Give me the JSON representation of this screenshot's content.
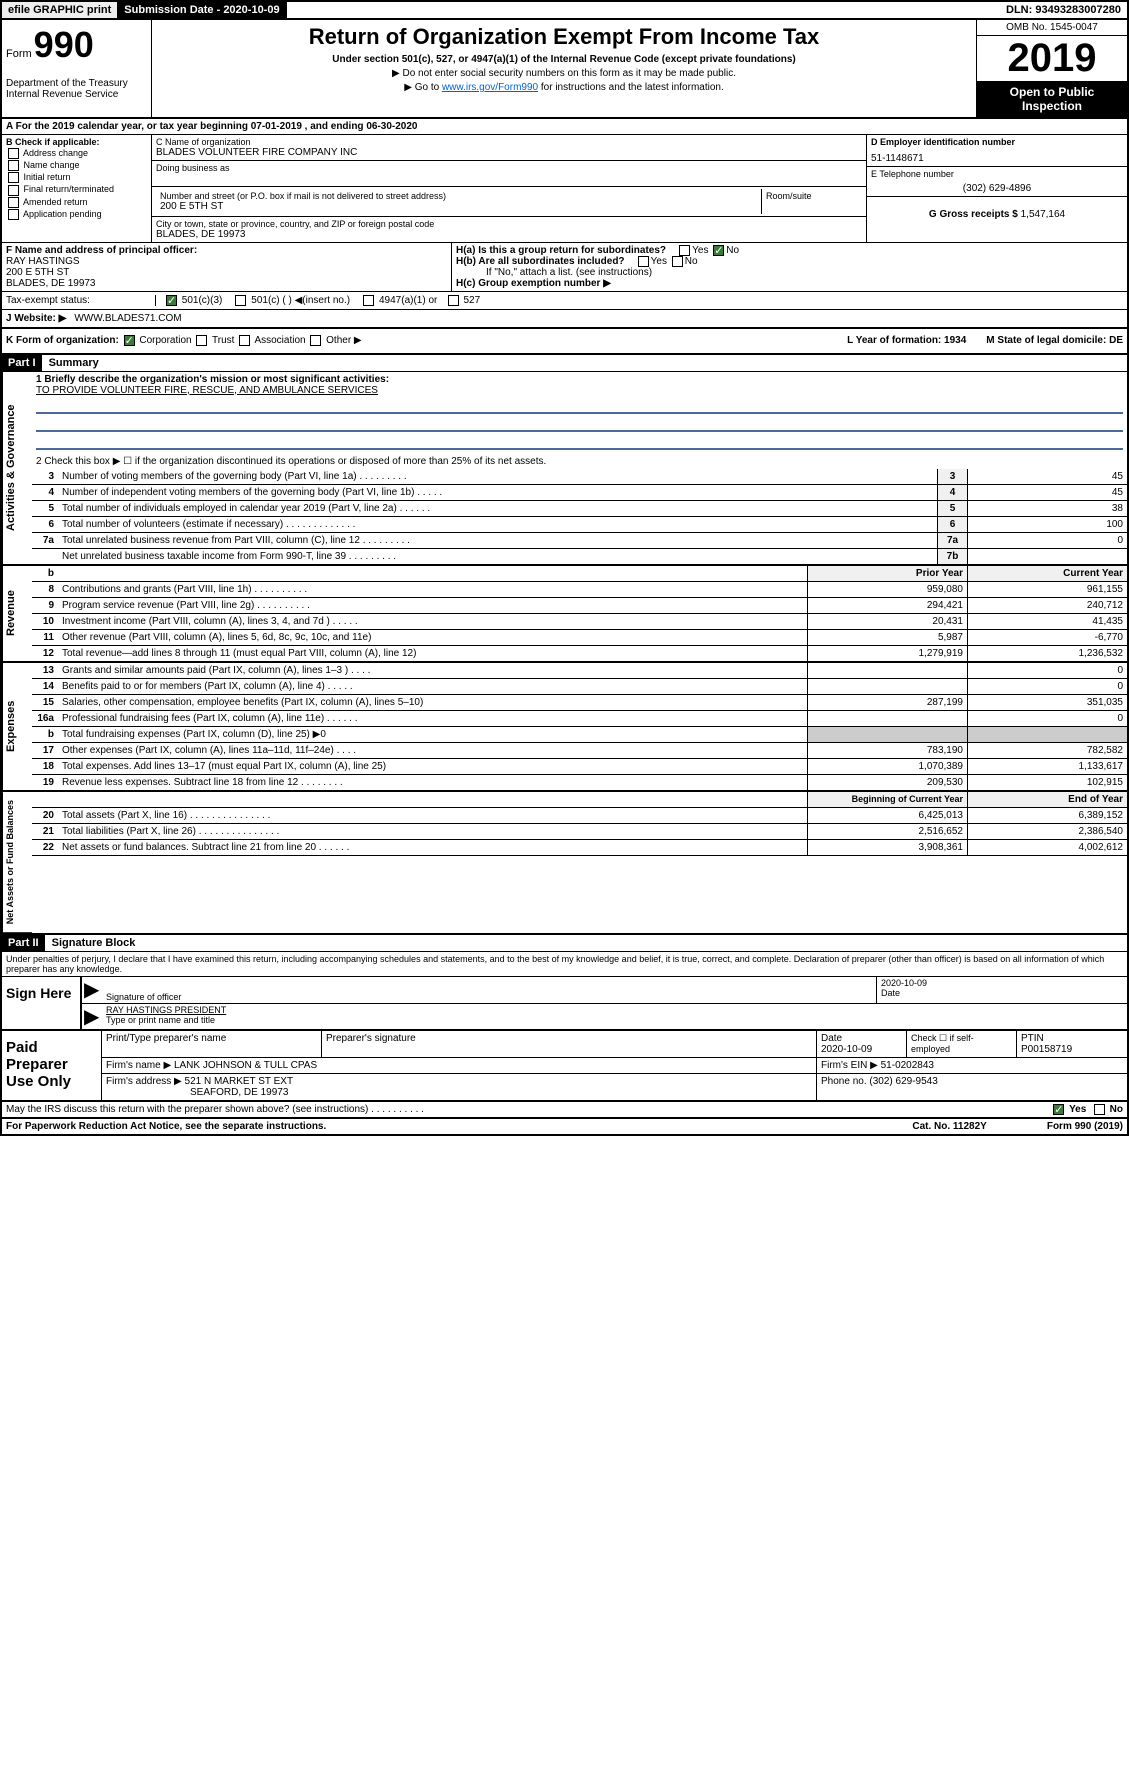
{
  "top": {
    "efile": "efile GRAPHIC print",
    "sub_label": "Submission Date - 2020-10-09",
    "dln": "DLN: 93493283007280"
  },
  "header": {
    "form_prefix": "Form",
    "form_no": "990",
    "dept": "Department of the Treasury\nInternal Revenue Service",
    "title": "Return of Organization Exempt From Income Tax",
    "under": "Under section 501(c), 527, or 4947(a)(1) of the Internal Revenue Code (except private foundations)",
    "note1": "▶ Do not enter social security numbers on this form as it may be made public.",
    "note2_pre": "▶ Go to ",
    "note2_link": "www.irs.gov/Form990",
    "note2_post": " for instructions and the latest information.",
    "omb": "OMB No. 1545-0047",
    "year": "2019",
    "open": "Open to Public Inspection"
  },
  "lineA": "A For the 2019 calendar year, or tax year beginning 07-01-2019     , and ending 06-30-2020",
  "sectionB": {
    "label": "B Check if applicable:",
    "items": [
      "Address change",
      "Name change",
      "Initial return",
      "Final return/terminated",
      "Amended return",
      "Application pending"
    ]
  },
  "sectionC": {
    "name_label": "C Name of organization",
    "name": "BLADES VOLUNTEER FIRE COMPANY INC",
    "dba_label": "Doing business as",
    "addr_label": "Number and street (or P.O. box if mail is not delivered to street address)",
    "room_label": "Room/suite",
    "addr": "200 E 5TH ST",
    "city_label": "City or town, state or province, country, and ZIP or foreign postal code",
    "city": "BLADES, DE  19973"
  },
  "sectionD": {
    "ein_label": "D Employer identification number",
    "ein": "51-1148671",
    "tel_label": "E Telephone number",
    "tel": "(302) 629-4896",
    "gross_label": "G Gross receipts $",
    "gross": "1,547,164"
  },
  "sectionF": {
    "label": "F  Name and address of principal officer:",
    "name": "RAY HASTINGS",
    "addr1": "200 E 5TH ST",
    "addr2": "BLADES, DE  19973"
  },
  "sectionH": {
    "ha": "H(a)  Is this a group return for subordinates?",
    "hb": "H(b)  Are all subordinates included?",
    "hb_note": "If \"No,\" attach a list. (see instructions)",
    "hc": "H(c)  Group exemption number ▶",
    "yes": "Yes",
    "no": "No"
  },
  "taxRow": {
    "label": "Tax-exempt status:",
    "opts": [
      "501(c)(3)",
      "501(c) (   ) ◀(insert no.)",
      "4947(a)(1) or",
      "527"
    ]
  },
  "webRow": {
    "label": "J   Website: ▶",
    "val": "WWW.BLADES71.COM"
  },
  "rowK": {
    "k": "K Form of organization:",
    "opts": [
      "Corporation",
      "Trust",
      "Association",
      "Other ▶"
    ],
    "l": "L Year of formation: 1934",
    "m": "M State of legal domicile: DE"
  },
  "part1": {
    "hdr": "Part I",
    "title": "Summary"
  },
  "gov": {
    "label": "Activities & Governance",
    "q1_label": "1   Briefly describe the organization's mission or most significant activities:",
    "q1_val": "TO PROVIDE VOLUNTEER FIRE, RESCUE, AND AMBULANCE SERVICES",
    "q2": "2    Check this box ▶ ☐  if the organization discontinued its operations or disposed of more than 25% of its net assets.",
    "rows": [
      {
        "n": "3",
        "d": "Number of voting members of the governing body (Part VI, line 1a)   .    .    .    .    .    .    .    .    .",
        "box": "3",
        "v": "45"
      },
      {
        "n": "4",
        "d": "Number of independent voting members of the governing body (Part VI, line 1b)   .    .    .    .    .",
        "box": "4",
        "v": "45"
      },
      {
        "n": "5",
        "d": "Total number of individuals employed in calendar year 2019 (Part V, line 2a)   .    .    .    .    .    .",
        "box": "5",
        "v": "38"
      },
      {
        "n": "6",
        "d": "Total number of volunteers (estimate if necessary)   .    .    .    .    .    .    .    .    .    .    .    .    .",
        "box": "6",
        "v": "100"
      },
      {
        "n": "7a",
        "d": "Total unrelated business revenue from Part VIII, column (C), line 12   .    .    .    .    .    .    .    .    .",
        "box": "7a",
        "v": "0"
      },
      {
        "n": "",
        "d": "Net unrelated business taxable income from Form 990-T, line 39   .    .    .    .    .    .    .    .    .",
        "box": "7b",
        "v": ""
      }
    ]
  },
  "rev": {
    "label": "Revenue",
    "hdr_prior": "Prior Year",
    "hdr_curr": "Current Year",
    "rows": [
      {
        "n": "8",
        "d": "Contributions and grants (Part VIII, line 1h)   .    .    .    .    .    .    .    .    .    .",
        "p": "959,080",
        "c": "961,155"
      },
      {
        "n": "9",
        "d": "Program service revenue (Part VIII, line 2g)   .    .    .    .    .    .    .    .    .    .",
        "p": "294,421",
        "c": "240,712"
      },
      {
        "n": "10",
        "d": "Investment income (Part VIII, column (A), lines 3, 4, and 7d )   .    .    .    .    .",
        "p": "20,431",
        "c": "41,435"
      },
      {
        "n": "11",
        "d": "Other revenue (Part VIII, column (A), lines 5, 6d, 8c, 9c, 10c, and 11e)",
        "p": "5,987",
        "c": "-6,770"
      },
      {
        "n": "12",
        "d": "Total revenue—add lines 8 through 11 (must equal Part VIII, column (A), line 12)",
        "p": "1,279,919",
        "c": "1,236,532"
      }
    ]
  },
  "exp": {
    "label": "Expenses",
    "rows": [
      {
        "n": "13",
        "d": "Grants and similar amounts paid (Part IX, column (A), lines 1–3 )   .    .    .    .",
        "p": "",
        "c": "0"
      },
      {
        "n": "14",
        "d": "Benefits paid to or for members (Part IX, column (A), line 4)   .    .    .    .    .",
        "p": "",
        "c": "0"
      },
      {
        "n": "15",
        "d": "Salaries, other compensation, employee benefits (Part IX, column (A), lines 5–10)",
        "p": "287,199",
        "c": "351,035"
      },
      {
        "n": "16a",
        "d": "Professional fundraising fees (Part IX, column (A), line 11e)   .    .    .    .    .    .",
        "p": "",
        "c": "0"
      },
      {
        "n": "b",
        "d": "Total fundraising expenses (Part IX, column (D), line 25) ▶0",
        "p": "___",
        "c": "___"
      },
      {
        "n": "17",
        "d": "Other expenses (Part IX, column (A), lines 11a–11d, 11f–24e)   .    .    .    .",
        "p": "783,190",
        "c": "782,582"
      },
      {
        "n": "18",
        "d": "Total expenses. Add lines 13–17 (must equal Part IX, column (A), line 25)",
        "p": "1,070,389",
        "c": "1,133,617"
      },
      {
        "n": "19",
        "d": "Revenue less expenses. Subtract line 18 from line 12   .    .    .    .    .    .    .    .",
        "p": "209,530",
        "c": "102,915"
      }
    ]
  },
  "net": {
    "label": "Net Assets or Fund Balances",
    "hdr_beg": "Beginning of Current Year",
    "hdr_end": "End of Year",
    "rows": [
      {
        "n": "20",
        "d": "Total assets (Part X, line 16)   .    .    .    .    .    .    .    .    .    .    .    .    .    .    .",
        "p": "6,425,013",
        "c": "6,389,152"
      },
      {
        "n": "21",
        "d": "Total liabilities (Part X, line 26)   .    .    .    .    .    .    .    .    .    .    .    .    .    .    .",
        "p": "2,516,652",
        "c": "2,386,540"
      },
      {
        "n": "22",
        "d": "Net assets or fund balances. Subtract line 21 from line 20   .    .    .    .    .    .",
        "p": "3,908,361",
        "c": "4,002,612"
      }
    ]
  },
  "part2": {
    "hdr": "Part II",
    "title": "Signature Block"
  },
  "perjury": "Under penalties of perjury, I declare that I have examined this return, including accompanying schedules and statements, and to the best of my knowledge and belief, it is true, correct, and complete. Declaration of preparer (other than officer) is based on all information of which preparer has any knowledge.",
  "sign": {
    "label": "Sign Here",
    "sig_of": "Signature of officer",
    "date": "2020-10-09",
    "date_label": "Date",
    "name": "RAY HASTINGS PRESIDENT",
    "name_label": "Type or print name and title"
  },
  "paid": {
    "label": "Paid Preparer Use Only",
    "prep_name_label": "Print/Type preparer's name",
    "prep_sig_label": "Preparer's signature",
    "date_label": "Date",
    "date": "2020-10-09",
    "check_label": "Check ☐ if self-employed",
    "ptin_label": "PTIN",
    "ptin": "P00158719",
    "firm_name_label": "Firm's name    ▶",
    "firm_name": "LANK JOHNSON & TULL CPAS",
    "firm_ein_label": "Firm's EIN ▶",
    "firm_ein": "51-0202843",
    "firm_addr_label": "Firm's address ▶",
    "firm_addr1": "521 N MARKET ST EXT",
    "firm_addr2": "SEAFORD, DE  19973",
    "phone_label": "Phone no.",
    "phone": "(302) 629-9543"
  },
  "footer": {
    "discuss": "May the IRS discuss this return with the preparer shown above? (see instructions)    .    .    .    .    .    .    .    .    .    .",
    "yes": "Yes",
    "no": "No",
    "paperwork": "For Paperwork Reduction Act Notice, see the separate instructions.",
    "cat": "Cat. No. 11282Y",
    "form": "Form 990 (2019)"
  },
  "colors": {
    "header_bg": "#000000",
    "checked": "#3a7a3a",
    "link": "#0066cc",
    "rule_blue": "#4a6a9a"
  }
}
